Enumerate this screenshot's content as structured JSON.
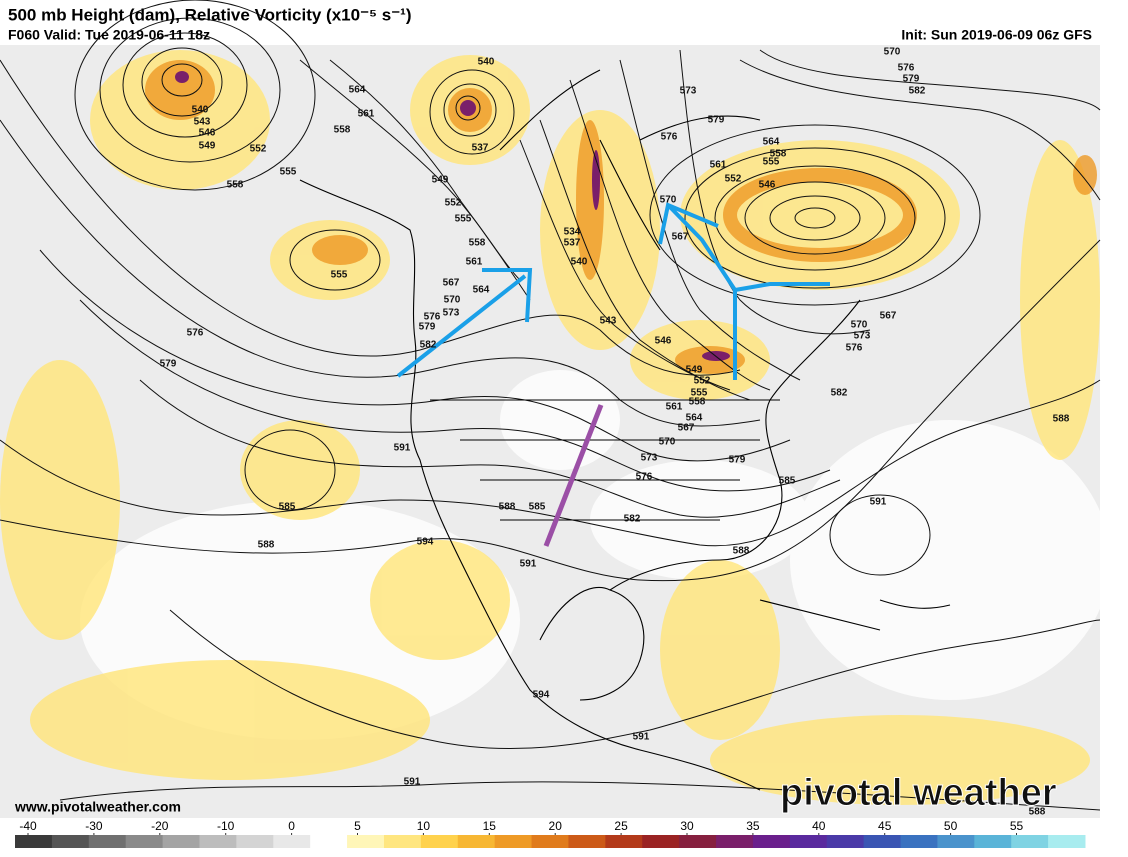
{
  "header": {
    "title": "500 mb Height (dam), Relative Vorticity (x10⁻⁵ s⁻¹)",
    "valid": "F060 Valid: Tue 2019-06-11 18z",
    "init": "Init: Sun 2019-06-09 06z GFS"
  },
  "map": {
    "contour_labels": [
      540,
      543,
      546,
      549,
      552,
      555,
      558,
      555,
      576,
      579,
      564,
      561,
      558,
      540,
      537,
      549,
      552,
      555,
      558,
      561,
      564,
      567,
      570,
      573,
      576,
      579,
      582,
      534,
      537,
      540,
      543,
      546,
      549,
      552,
      555,
      558,
      561,
      564,
      567,
      570,
      573,
      576,
      579,
      582,
      585,
      588,
      591,
      585,
      588,
      594,
      591,
      594,
      591,
      591,
      588,
      588,
      591,
      585,
      582,
      588,
      576,
      573,
      570,
      567,
      573,
      576,
      579,
      570,
      567,
      564,
      558,
      555,
      561,
      552,
      546,
      570,
      576,
      579,
      582
    ]
  },
  "colorbar": {
    "ticks": [
      -40,
      -30,
      -20,
      -10,
      0,
      5,
      10,
      15,
      20,
      25,
      30,
      35,
      40,
      45,
      50,
      55
    ],
    "colors": [
      "#3a3a3a",
      "#555555",
      "#707070",
      "#8a8a8a",
      "#a4a4a4",
      "#bdbdbd",
      "#d4d4d4",
      "#e8e8e8",
      "#ffffff",
      "#fff6b8",
      "#ffe680",
      "#ffd24d",
      "#f7b733",
      "#ee9a26",
      "#e07b1c",
      "#cc5a18",
      "#b33a1a",
      "#9a2323",
      "#86203f",
      "#7a1f6a",
      "#6a1f8c",
      "#5a2a9e",
      "#4a3aa8",
      "#3a55b3",
      "#3a72c0",
      "#4a93cc",
      "#5ab4d8",
      "#7fd3e3",
      "#a8ecef"
    ]
  },
  "footer": {
    "website": "www.pivotalweather.com",
    "logo": "pivotal weather"
  }
}
